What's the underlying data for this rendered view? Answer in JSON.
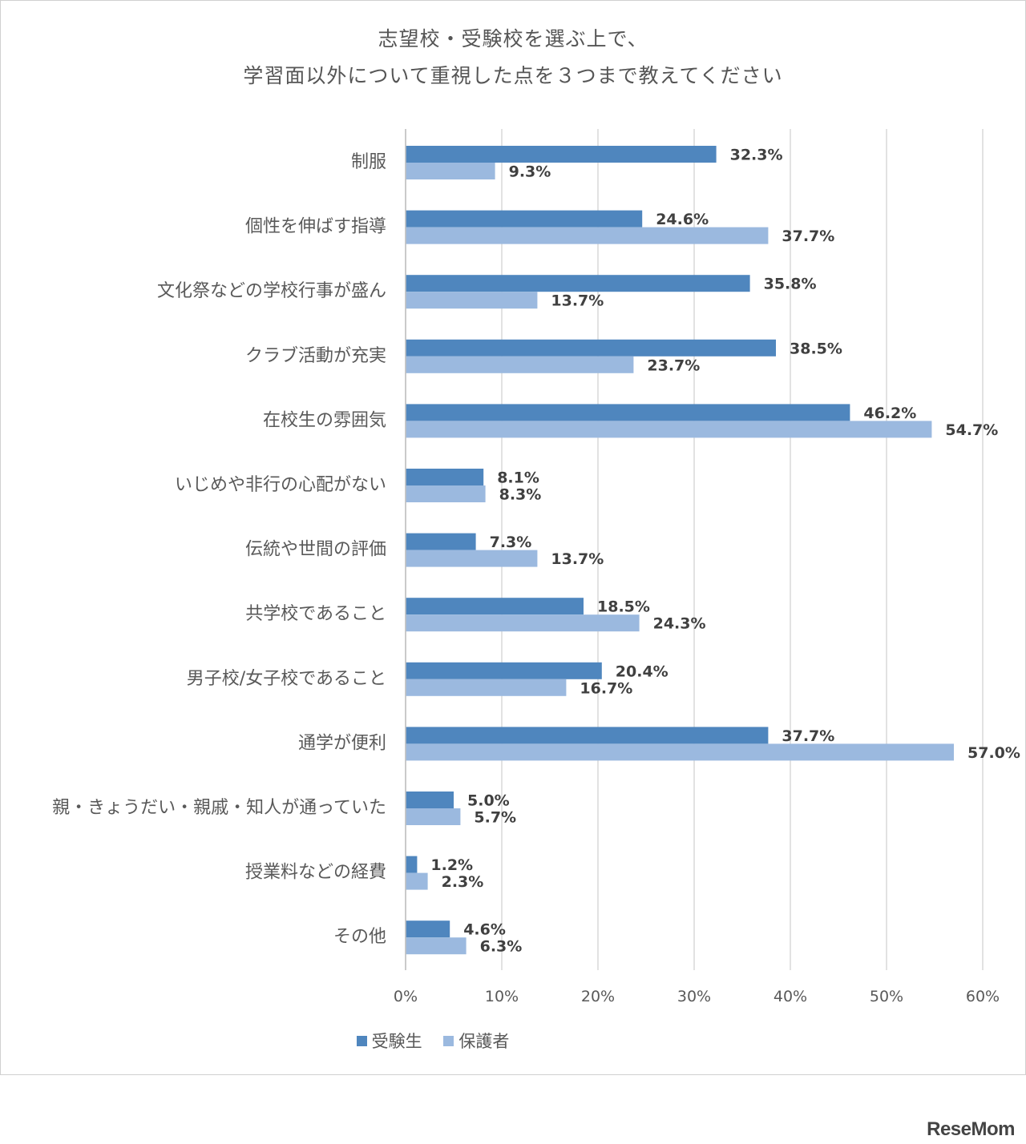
{
  "title_lines": [
    "志望校・受験校を選ぶ上で、",
    "学習面以外について重視した点を３つまで教えてください"
  ],
  "watermark": "ReseMom",
  "colors": {
    "series1": "#4f86be",
    "series2": "#9bb9df",
    "grid": "#d9d9d9"
  },
  "chart_data": {
    "type": "bar",
    "orientation": "horizontal",
    "title": "志望校・受験校を選ぶ上で、学習面以外について重視した点を３つまで教えてください",
    "categories": [
      "制服",
      "個性を伸ばす指導",
      "文化祭などの学校行事が盛ん",
      "クラブ活動が充実",
      "在校生の雰囲気",
      "いじめや非行の心配がない",
      "伝統や世間の評価",
      "共学校であること",
      "男子校/女子校であること",
      "通学が便利",
      "親・きょうだい・親戚・知人が通っていた",
      "授業料などの経費",
      "その他"
    ],
    "series": [
      {
        "name": "受験生",
        "values": [
          32.3,
          24.6,
          35.8,
          38.5,
          46.2,
          8.1,
          7.3,
          18.5,
          20.4,
          37.7,
          5.0,
          1.2,
          4.6
        ],
        "labels": [
          "32.3%",
          "24.6%",
          "35.8%",
          "38.5%",
          "46.2%",
          "8.1%",
          "7.3%",
          "18.5%",
          "20.4%",
          "37.7%",
          "5.0%",
          "1.2%",
          "4.6%"
        ]
      },
      {
        "name": "保護者",
        "values": [
          9.3,
          37.7,
          13.7,
          23.7,
          54.7,
          8.3,
          13.7,
          24.3,
          16.7,
          57.0,
          5.7,
          2.3,
          6.3
        ],
        "labels": [
          "9.3%",
          "37.7%",
          "13.7%",
          "23.7%",
          "54.7%",
          "8.3%",
          "13.7%",
          "24.3%",
          "16.7%",
          "57.0%",
          "5.7%",
          "2.3%",
          "6.3%"
        ]
      }
    ],
    "xlim": [
      0,
      60
    ],
    "xticks": [
      0,
      10,
      20,
      30,
      40,
      50,
      60
    ],
    "xtick_labels": [
      "0%",
      "10%",
      "20%",
      "30%",
      "40%",
      "50%",
      "60%"
    ],
    "grid": true,
    "legend_position": "bottom"
  }
}
